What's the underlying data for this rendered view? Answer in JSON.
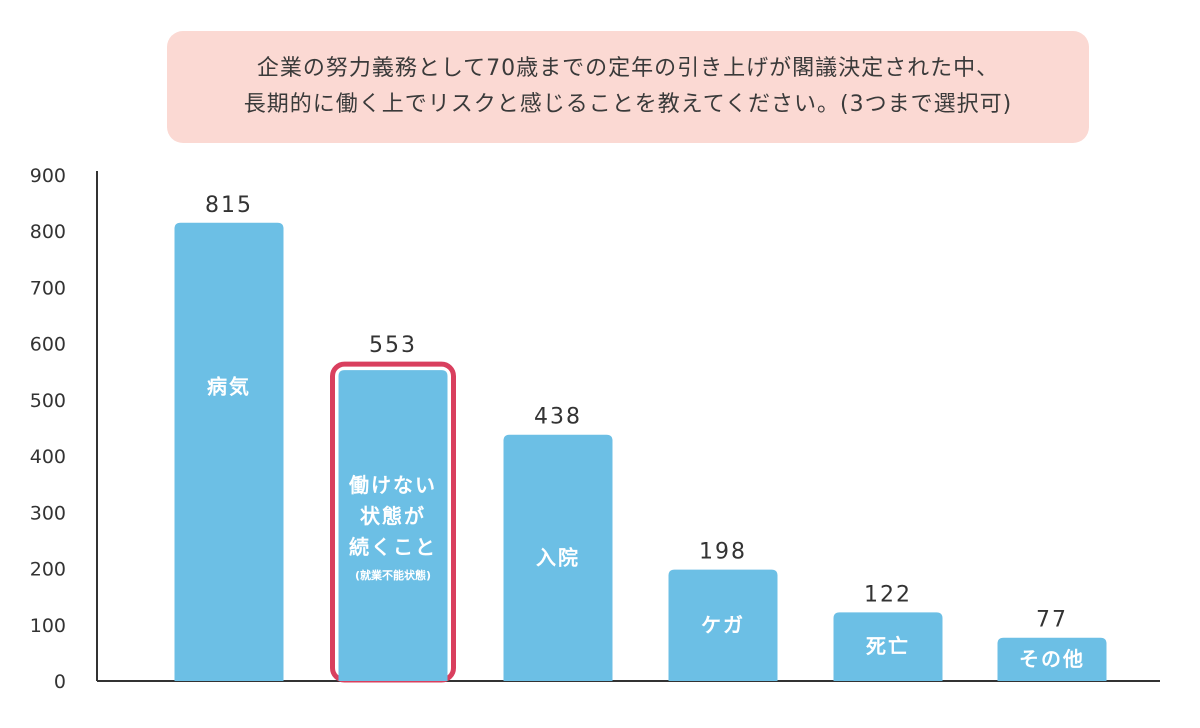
{
  "title_lines": [
    "企業の努力義務として70歳までの定年の引き上げが閣議決定された中、",
    "長期的に働く上でリスクと感じることを教えてください。(3つまで選択可)"
  ],
  "colors": {
    "bar": "#6cbfe5",
    "highlight": "#d93f5e",
    "title_bg": "#fbd9d3",
    "axis": "#333333"
  },
  "chart_data": {
    "type": "bar",
    "title": "企業の努力義務として70歳までの定年の引き上げが閣議決定された中、長期的に働く上でリスクと感じることを教えてください。(3つまで選択可)",
    "categories": [
      {
        "label_lines": [
          "病気"
        ]
      },
      {
        "label_lines": [
          "働けない",
          "状態が",
          "続くこと"
        ],
        "sub": "(就業不能状態)",
        "highlight": true
      },
      {
        "label_lines": [
          "入院"
        ]
      },
      {
        "label_lines": [
          "ケガ"
        ]
      },
      {
        "label_lines": [
          "死亡"
        ]
      },
      {
        "label_lines": [
          "その他"
        ]
      }
    ],
    "values": [
      815,
      553,
      438,
      198,
      122,
      77
    ],
    "value_labels": [
      "815",
      "553",
      "438",
      "198",
      "122",
      "77"
    ],
    "ylim": [
      0,
      900
    ],
    "yticks": [
      "0",
      "100",
      "200",
      "300",
      "400",
      "500",
      "600",
      "700",
      "800",
      "900"
    ],
    "grid": false,
    "legend": "none"
  }
}
